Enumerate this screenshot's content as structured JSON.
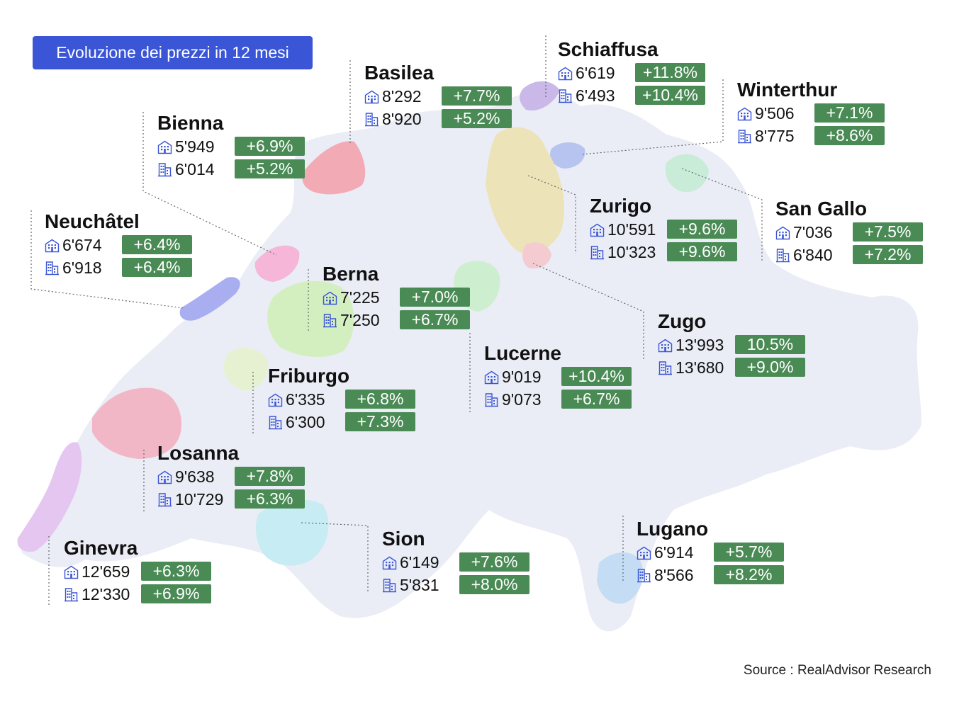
{
  "title": "Evoluzione dei prezzi in 12 mesi",
  "source": "Source : RealAdvisor Research",
  "icons": {
    "apartment": "apartment-building-icon",
    "house": "house-building-icon"
  },
  "colors": {
    "badge": "#3a55d6",
    "change": "#4a8a55",
    "icon": "#3a55d6",
    "map_base": "#e9ecf4"
  },
  "cities": [
    {
      "name": "Schiaffusa",
      "apartment_price": "6'619",
      "apartment_change": "+11.8%",
      "house_price": "6'493",
      "house_change": "+10.4%",
      "color": "#c9b8e8"
    },
    {
      "name": "Basilea",
      "apartment_price": "8'292",
      "apartment_change": "+7.7%",
      "house_price": "8'920",
      "house_change": "+5.2%",
      "color": "#f2aab4"
    },
    {
      "name": "Winterthur",
      "apartment_price": "9'506",
      "apartment_change": "+7.1%",
      "house_price": "8'775",
      "house_change": "+8.6%",
      "color": "#b8c4f0"
    },
    {
      "name": "Bienna",
      "apartment_price": "5'949",
      "apartment_change": "+6.9%",
      "house_price": "6'014",
      "house_change": "+5.2%",
      "color": "#f5b6d8"
    },
    {
      "name": "Zurigo",
      "apartment_price": "10'591",
      "apartment_change": "+9.6%",
      "house_price": "10'323",
      "house_change": "+9.6%",
      "color": "#ece3b8"
    },
    {
      "name": "San Gallo",
      "apartment_price": "7'036",
      "apartment_change": "+7.5%",
      "house_price": "6'840",
      "house_change": "+7.2%",
      "color": "#c8ecd8"
    },
    {
      "name": "Neuchâtel",
      "apartment_price": "6'674",
      "apartment_change": "+6.4%",
      "house_price": "6'918",
      "house_change": "+6.4%",
      "color": "#a9aef0"
    },
    {
      "name": "Berna",
      "apartment_price": "7'225",
      "apartment_change": "+7.0%",
      "house_price": "7'250",
      "house_change": "+6.7%",
      "color": "#d3efc0"
    },
    {
      "name": "Zugo",
      "apartment_price": "13'993",
      "apartment_change": "10.5%",
      "house_price": "13'680",
      "house_change": "+9.0%",
      "color": "#f5cbd2"
    },
    {
      "name": "Lucerne",
      "apartment_price": "9'019",
      "apartment_change": "+10.4%",
      "house_price": "9'073",
      "house_change": "+6.7%",
      "color": "#cdefcf"
    },
    {
      "name": "Friburgo",
      "apartment_price": "6'335",
      "apartment_change": "+6.8%",
      "house_price": "6'300",
      "house_change": "+7.3%",
      "color": "#e6f1d2"
    },
    {
      "name": "Losanna",
      "apartment_price": "9'638",
      "apartment_change": "+7.8%",
      "house_price": "10'729",
      "house_change": "+6.3%",
      "color": "#f2b7c6"
    },
    {
      "name": "Ginevra",
      "apartment_price": "12'659",
      "apartment_change": "+6.3%",
      "house_price": "12'330",
      "house_change": "+6.9%",
      "color": "#e5c6f0"
    },
    {
      "name": "Sion",
      "apartment_price": "6'149",
      "apartment_change": "+7.6%",
      "house_price": "5'831",
      "house_change": "+8.0%",
      "color": "#c7ecf3"
    },
    {
      "name": "Lugano",
      "apartment_price": "6'914",
      "apartment_change": "+5.7%",
      "house_price": "8'566",
      "house_change": "+8.2%",
      "color": "#c5dcf5"
    }
  ]
}
